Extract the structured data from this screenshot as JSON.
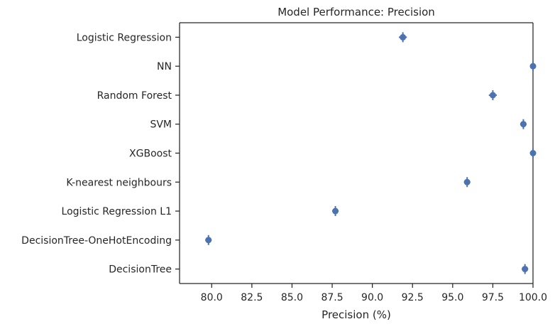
{
  "chart_data": {
    "type": "scatter",
    "title": "Model Performance: Precision",
    "xlabel": "Precision (%)",
    "ylabel": "",
    "xlim": [
      78.0,
      100.0
    ],
    "xticks": [
      "80.0",
      "82.5",
      "85.0",
      "87.5",
      "90.0",
      "92.5",
      "95.0",
      "97.5",
      "100.0"
    ],
    "xtick_values": [
      80.0,
      82.5,
      85.0,
      87.5,
      90.0,
      92.5,
      95.0,
      97.5,
      100.0
    ],
    "categories": [
      "Logistic Regression",
      "NN",
      "Random Forest",
      "SVM",
      "XGBoost",
      "K-nearest neighbours",
      "Logistic Regression L1",
      "DecisionTree-OneHotEncoding",
      "DecisionTree"
    ],
    "values": [
      91.9,
      100.0,
      97.5,
      99.4,
      100.0,
      95.9,
      87.7,
      79.8,
      99.5
    ],
    "errors": [
      0.25,
      0.0,
      0.25,
      0.2,
      0.0,
      0.2,
      0.2,
      0.2,
      0.2
    ],
    "grid": false,
    "color": "#4c72b0"
  }
}
